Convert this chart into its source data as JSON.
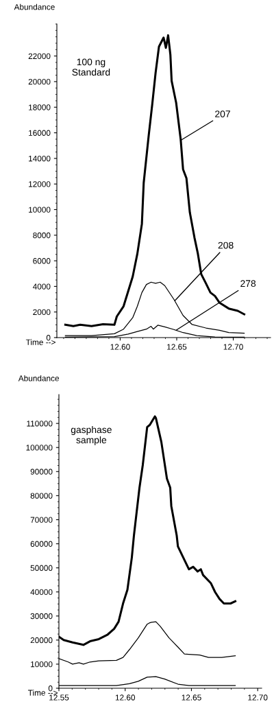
{
  "chart_data": [
    {
      "type": "line",
      "xlabel": "Time -->",
      "ylabel": "Abundance",
      "xlim": [
        12.544,
        12.733
      ],
      "ylim": [
        0,
        24500
      ],
      "xticks": [
        {
          "value": 12.6,
          "label": "12.60"
        },
        {
          "value": 12.65,
          "label": "12.65"
        },
        {
          "value": 12.7,
          "label": "12.70"
        }
      ],
      "yticks": [
        0,
        2000,
        4000,
        6000,
        8000,
        10000,
        12000,
        14000,
        16000,
        18000,
        20000,
        22000
      ],
      "grid": false,
      "legend": false,
      "marker": "none",
      "line_style": "solid",
      "annotations": [
        "100 ng\nStandard",
        {
          "text": "207",
          "x": 12.6533,
          "y": 15400
        },
        {
          "text": "208",
          "x": 12.6485,
          "y": 2900
        },
        {
          "text": "278",
          "x": 12.6497,
          "y": 590
        }
      ],
      "series": [
        {
          "color": "#000000",
          "x": [
            12.5515,
            12.5586,
            12.5646,
            12.5747,
            12.5848,
            12.5949,
            12.597,
            12.603,
            12.6111,
            12.6152,
            12.6192,
            12.6208,
            12.6253,
            12.6283,
            12.6313,
            12.6343,
            12.6384,
            12.6404,
            12.6424,
            12.6444,
            12.6455,
            12.6495,
            12.6535,
            12.6556,
            12.6586,
            12.6616,
            12.6657,
            12.6687,
            12.6717,
            12.6758,
            12.6798,
            12.6838,
            12.6879,
            12.696,
            12.704,
            12.7097
          ],
          "values": [
            1000,
            900,
            1000,
            900,
            1050,
            1000,
            1650,
            2450,
            4770,
            6560,
            8890,
            12090,
            15850,
            18180,
            20670,
            22730,
            23440,
            22640,
            23620,
            22100,
            20060,
            18350,
            15500,
            13150,
            12450,
            9780,
            7810,
            6560,
            4950,
            4240,
            3520,
            3250,
            2720,
            2270,
            2090,
            1820
          ]
        },
        {
          "color": "#000000",
          "x": [
            12.5515,
            12.5747,
            12.5949,
            12.603,
            12.6111,
            12.6152,
            12.6192,
            12.6232,
            12.6273,
            12.6313,
            12.6354,
            12.6394,
            12.6475,
            12.6556,
            12.6636,
            12.6758,
            12.6879,
            12.696,
            12.7097
          ],
          "values": [
            160,
            160,
            300,
            660,
            1560,
            2450,
            3520,
            4150,
            4330,
            4240,
            4330,
            4060,
            2990,
            1730,
            1020,
            750,
            570,
            390,
            340
          ]
        },
        {
          "color": "#000000",
          "x": [
            12.5515,
            12.5949,
            12.6071,
            12.6152,
            12.6232,
            12.6273,
            12.6293,
            12.6333,
            12.6394,
            12.6475,
            12.6556,
            12.6677,
            12.6838,
            12.7097
          ],
          "values": [
            40,
            70,
            270,
            480,
            660,
            880,
            660,
            970,
            840,
            630,
            390,
            160,
            50,
            40
          ]
        }
      ]
    },
    {
      "type": "line",
      "xlabel": "Time -->",
      "ylabel": "Abundance",
      "xlim": [
        12.55,
        12.703
      ],
      "ylim": [
        0,
        122000
      ],
      "xticks": [
        {
          "value": 12.55,
          "label": "12.55"
        },
        {
          "value": 12.6,
          "label": "12.60"
        },
        {
          "value": 12.65,
          "label": "12.65"
        },
        {
          "value": 12.7,
          "label": "12.70"
        }
      ],
      "yticks": [
        0,
        10000,
        20000,
        30000,
        40000,
        50000,
        60000,
        70000,
        80000,
        90000,
        100000,
        110000
      ],
      "grid": false,
      "legend": false,
      "marker": "none",
      "line_style": "solid",
      "annotations": [
        "gasphase\nsample"
      ],
      "series": [
        {
          "color": "#000000",
          "x": [
            12.55,
            12.5536,
            12.5603,
            12.5685,
            12.5735,
            12.5801,
            12.5868,
            12.5917,
            12.595,
            12.5984,
            12.6017,
            12.605,
            12.6066,
            12.6108,
            12.6133,
            12.6166,
            12.6186,
            12.6224,
            12.6232,
            12.6273,
            12.6315,
            12.634,
            12.6348,
            12.6389,
            12.6398,
            12.6431,
            12.6481,
            12.6513,
            12.6547,
            12.6571,
            12.6588,
            12.6646,
            12.6679,
            12.6712,
            12.6745,
            12.6795,
            12.6831
          ],
          "values": [
            21400,
            20000,
            19000,
            18000,
            19500,
            20400,
            22300,
            24700,
            27600,
            35200,
            40900,
            54200,
            63400,
            83300,
            92800,
            108500,
            109400,
            112900,
            112200,
            102300,
            87100,
            83300,
            75700,
            63400,
            58900,
            55100,
            49400,
            50400,
            48500,
            49400,
            47000,
            43700,
            39900,
            37100,
            35200,
            35200,
            36100
          ]
        },
        {
          "color": "#000000",
          "x": [
            12.55,
            12.557,
            12.5603,
            12.5652,
            12.5685,
            12.5735,
            12.5801,
            12.5934,
            12.5984,
            12.6033,
            12.6099,
            12.6166,
            12.6182,
            12.6199,
            12.6232,
            12.6265,
            12.6331,
            12.6398,
            12.6447,
            12.6481,
            12.6563,
            12.6629,
            12.6729,
            12.6831
          ],
          "values": [
            12300,
            10900,
            10000,
            10600,
            10000,
            10900,
            11400,
            11600,
            12800,
            16100,
            20900,
            26600,
            27100,
            27400,
            27600,
            25700,
            20900,
            17100,
            14200,
            14100,
            13800,
            12800,
            12800,
            13500
          ]
        },
        {
          "color": "#000000",
          "x": [
            12.55,
            12.5735,
            12.5934,
            12.6033,
            12.6099,
            12.6166,
            12.6232,
            12.6298,
            12.6398,
            12.6481,
            12.6831
          ],
          "values": [
            1100,
            1100,
            1100,
            1900,
            2900,
            4600,
            4800,
            3800,
            1700,
            1100,
            1100
          ]
        }
      ]
    }
  ]
}
